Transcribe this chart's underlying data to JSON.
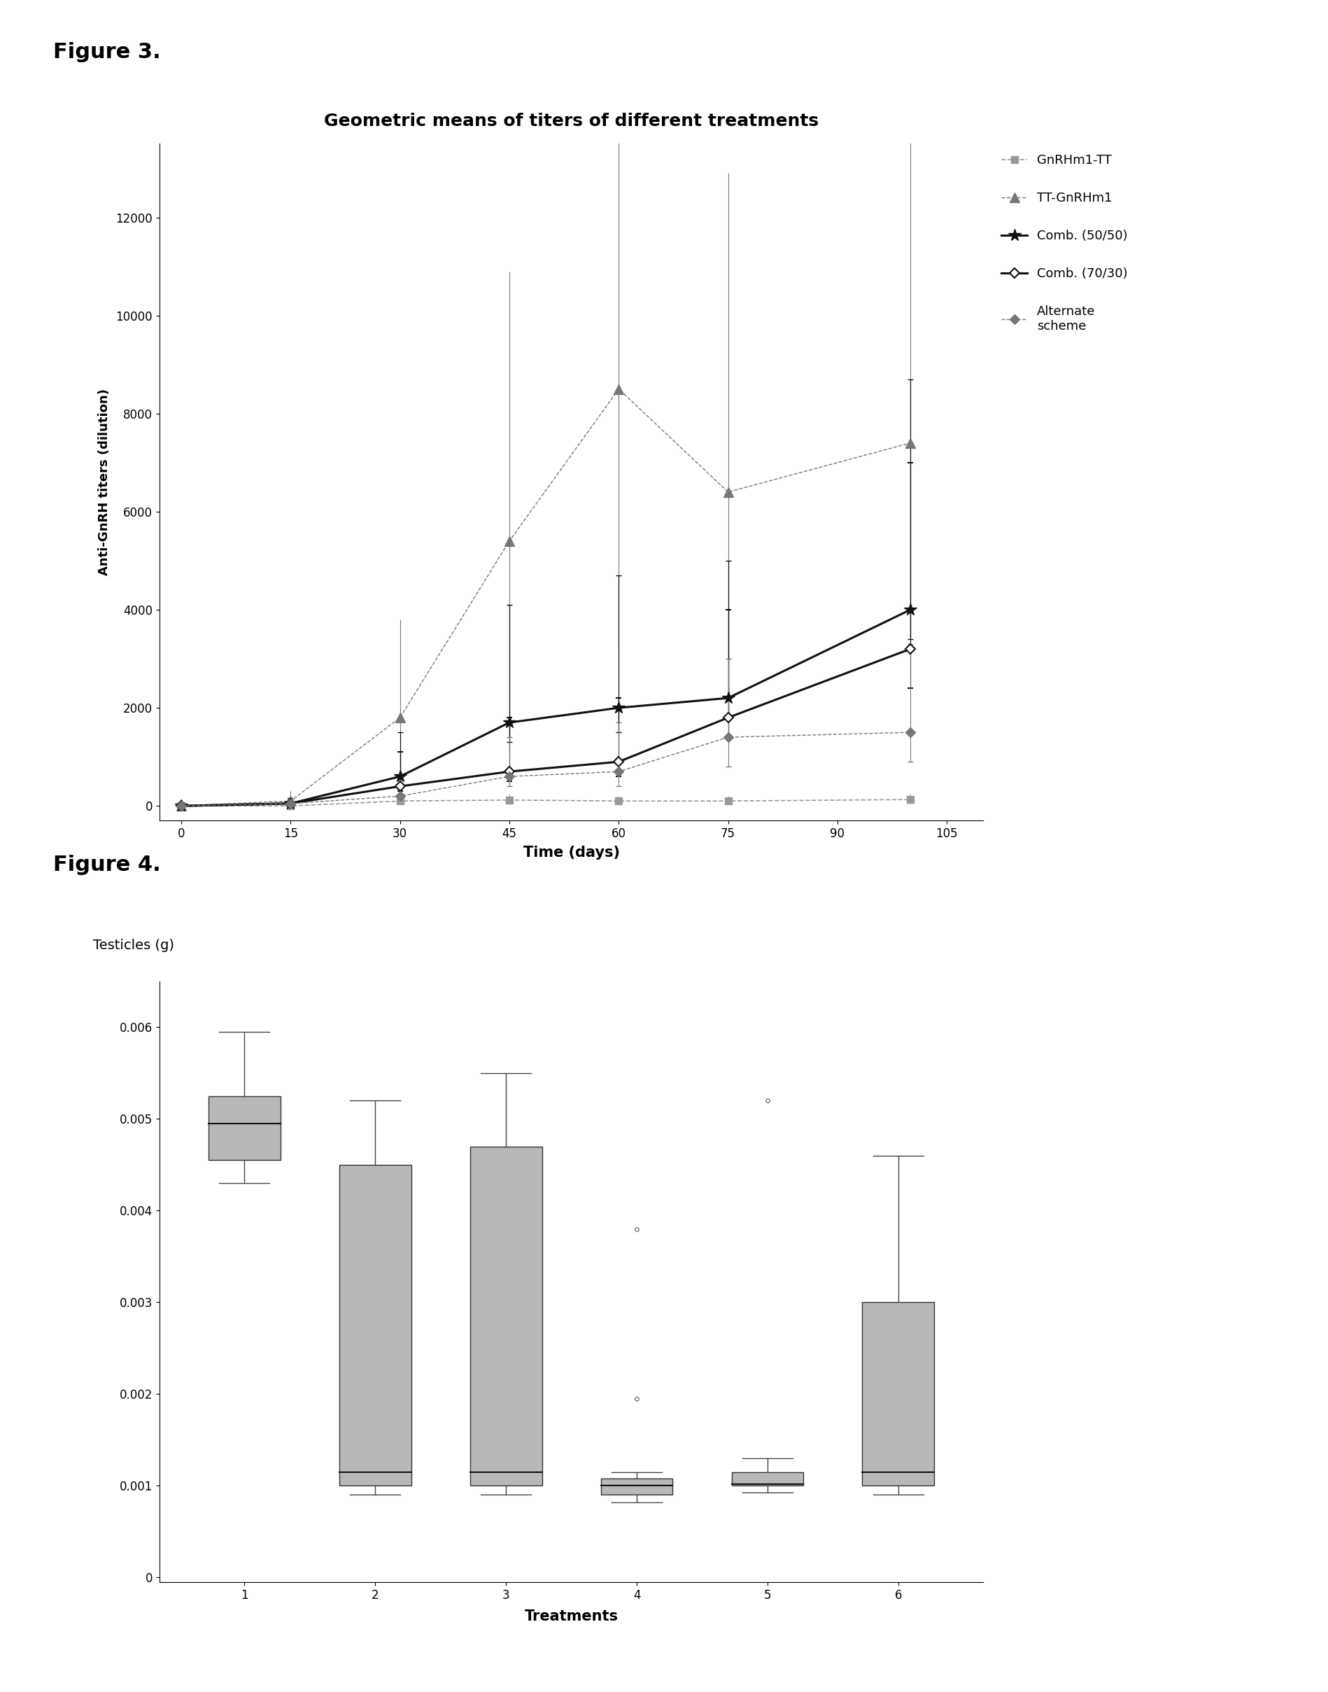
{
  "fig3_title": "Geometric means of titers of different treatments",
  "fig3_xlabel": "Time (days)",
  "fig3_ylabel": "Anti-GnRH titers (dilution)",
  "fig3_xlim": [
    -3,
    110
  ],
  "fig3_ylim": [
    -300,
    13500
  ],
  "fig3_xticks": [
    0,
    15,
    30,
    45,
    60,
    75,
    90,
    105
  ],
  "fig3_yticks": [
    0,
    2000,
    4000,
    6000,
    8000,
    10000,
    12000
  ],
  "fig4_ylabel": "Testicles (g)",
  "fig4_xlabel": "Treatments",
  "fig4_ylim": [
    -5e-05,
    0.0065
  ],
  "fig4_yticks": [
    0,
    0.001,
    0.002,
    0.003,
    0.004,
    0.005,
    0.006
  ],
  "fig4_xlabels": [
    "1",
    "2",
    "3",
    "4",
    "5",
    "6"
  ],
  "fig4_boxes": [
    {
      "q1": 0.00455,
      "median": 0.00495,
      "q3": 0.00525,
      "whisker_low": 0.0043,
      "whisker_high": 0.00595,
      "fliers": []
    },
    {
      "q1": 0.001,
      "median": 0.00115,
      "q3": 0.0045,
      "whisker_low": 0.0009,
      "whisker_high": 0.0052,
      "fliers": []
    },
    {
      "q1": 0.001,
      "median": 0.00115,
      "q3": 0.0047,
      "whisker_low": 0.0009,
      "whisker_high": 0.0055,
      "fliers": []
    },
    {
      "q1": 0.0009,
      "median": 0.001,
      "q3": 0.00108,
      "whisker_low": 0.00082,
      "whisker_high": 0.00115,
      "fliers": [
        0.00195,
        0.0038
      ]
    },
    {
      "q1": 0.001,
      "median": 0.00102,
      "q3": 0.00115,
      "whisker_low": 0.00093,
      "whisker_high": 0.0013,
      "fliers": [
        0.0052
      ]
    },
    {
      "q1": 0.001,
      "median": 0.00115,
      "q3": 0.003,
      "whisker_low": 0.0009,
      "whisker_high": 0.0046,
      "fliers": []
    }
  ],
  "background_color": "#ffffff"
}
